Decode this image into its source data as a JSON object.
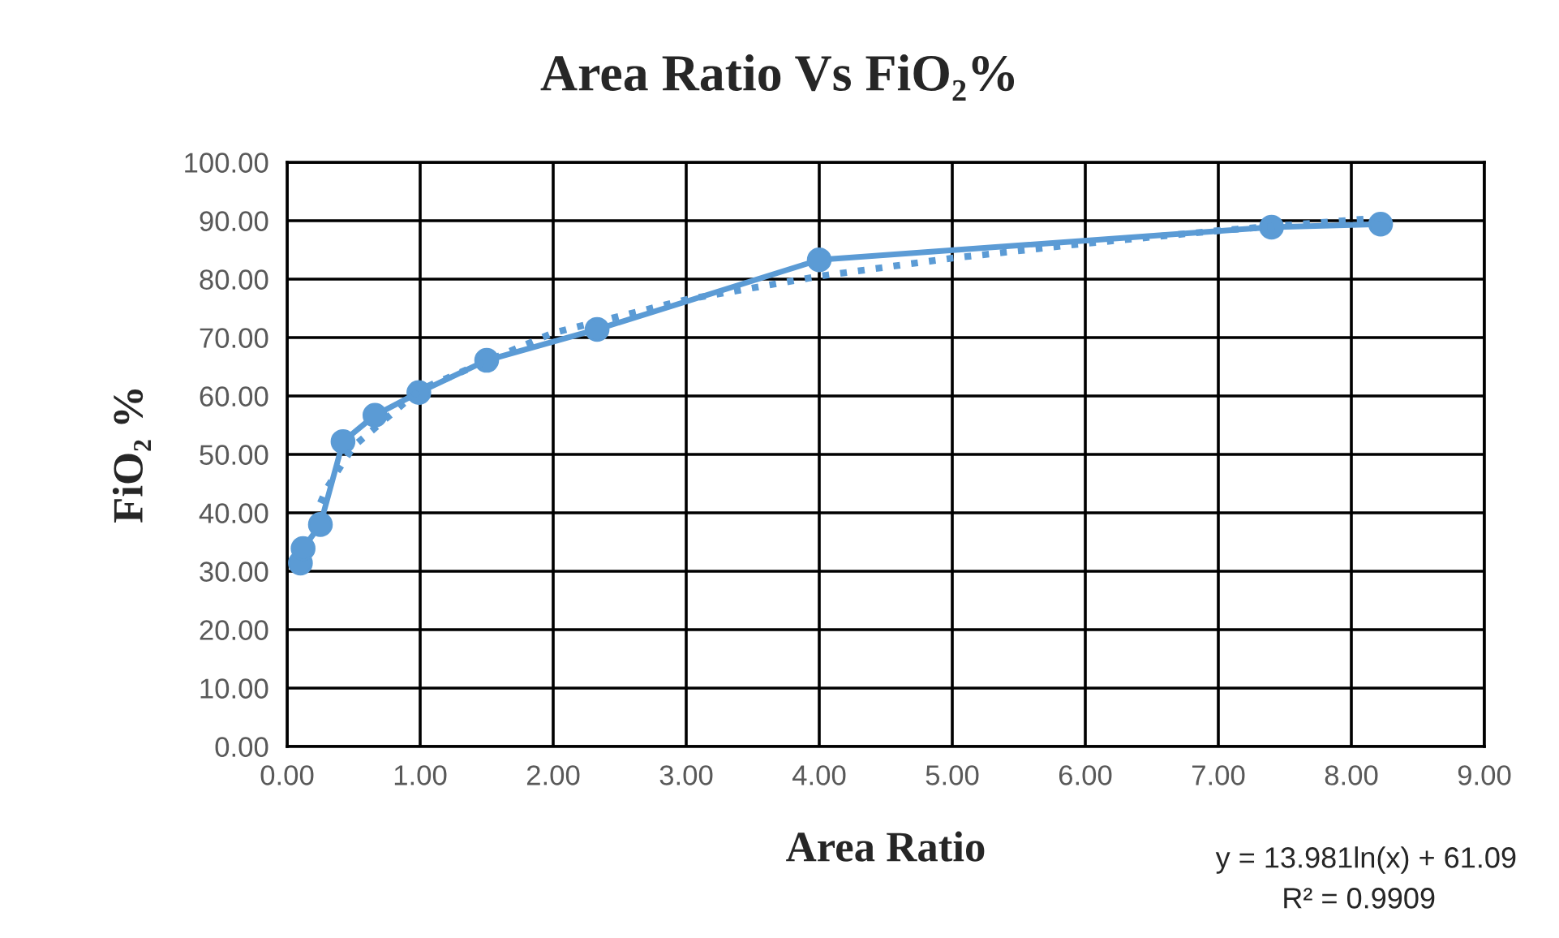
{
  "chart_data": {
    "type": "line",
    "title": "Area Ratio Vs FiO₂%",
    "xlabel": "Area Ratio",
    "ylabel": "FiO₂ %",
    "xlim": [
      0,
      9
    ],
    "ylim": [
      0,
      100
    ],
    "xticks": [
      {
        "value": 0,
        "label": "0.00"
      },
      {
        "value": 1,
        "label": "1.00"
      },
      {
        "value": 2,
        "label": "2.00"
      },
      {
        "value": 3,
        "label": "3.00"
      },
      {
        "value": 4,
        "label": "4.00"
      },
      {
        "value": 5,
        "label": "5.00"
      },
      {
        "value": 6,
        "label": "6.00"
      },
      {
        "value": 7,
        "label": "7.00"
      },
      {
        "value": 8,
        "label": "8.00"
      },
      {
        "value": 9,
        "label": "9.00"
      }
    ],
    "yticks": [
      {
        "value": 0,
        "label": "0.00"
      },
      {
        "value": 10,
        "label": "10.00"
      },
      {
        "value": 20,
        "label": "20.00"
      },
      {
        "value": 30,
        "label": "30.00"
      },
      {
        "value": 40,
        "label": "40.00"
      },
      {
        "value": 50,
        "label": "50.00"
      },
      {
        "value": 60,
        "label": "60.00"
      },
      {
        "value": 70,
        "label": "70.00"
      },
      {
        "value": 80,
        "label": "80.00"
      },
      {
        "value": 90,
        "label": "90.00"
      },
      {
        "value": 100,
        "label": "100.00"
      }
    ],
    "grid": true,
    "legend": false,
    "series": [
      {
        "color": "#5b9bd5",
        "marker": "circle",
        "line_style": "solid",
        "x": [
          0.1,
          0.12,
          0.25,
          0.42,
          0.66,
          0.99,
          1.5,
          2.33,
          4.0,
          7.4,
          8.22
        ],
        "values": [
          31.4,
          33.9,
          38.0,
          52.2,
          56.7,
          60.6,
          66.1,
          71.4,
          83.3,
          88.9,
          89.4
        ]
      },
      {
        "color": "#5b9bd5",
        "marker": "none",
        "line_style": "dotted",
        "x": [
          0.25,
          0.3,
          0.5,
          1,
          2,
          3,
          4,
          5,
          6,
          7,
          8.22
        ],
        "values": [
          41.7,
          44.3,
          51.4,
          61.1,
          70.8,
          76.5,
          80.5,
          83.6,
          86.1,
          88.3,
          90.5
        ]
      }
    ],
    "annotations": [
      "y = 13.981ln(x) + 61.09",
      "R² = 0.9909"
    ]
  }
}
